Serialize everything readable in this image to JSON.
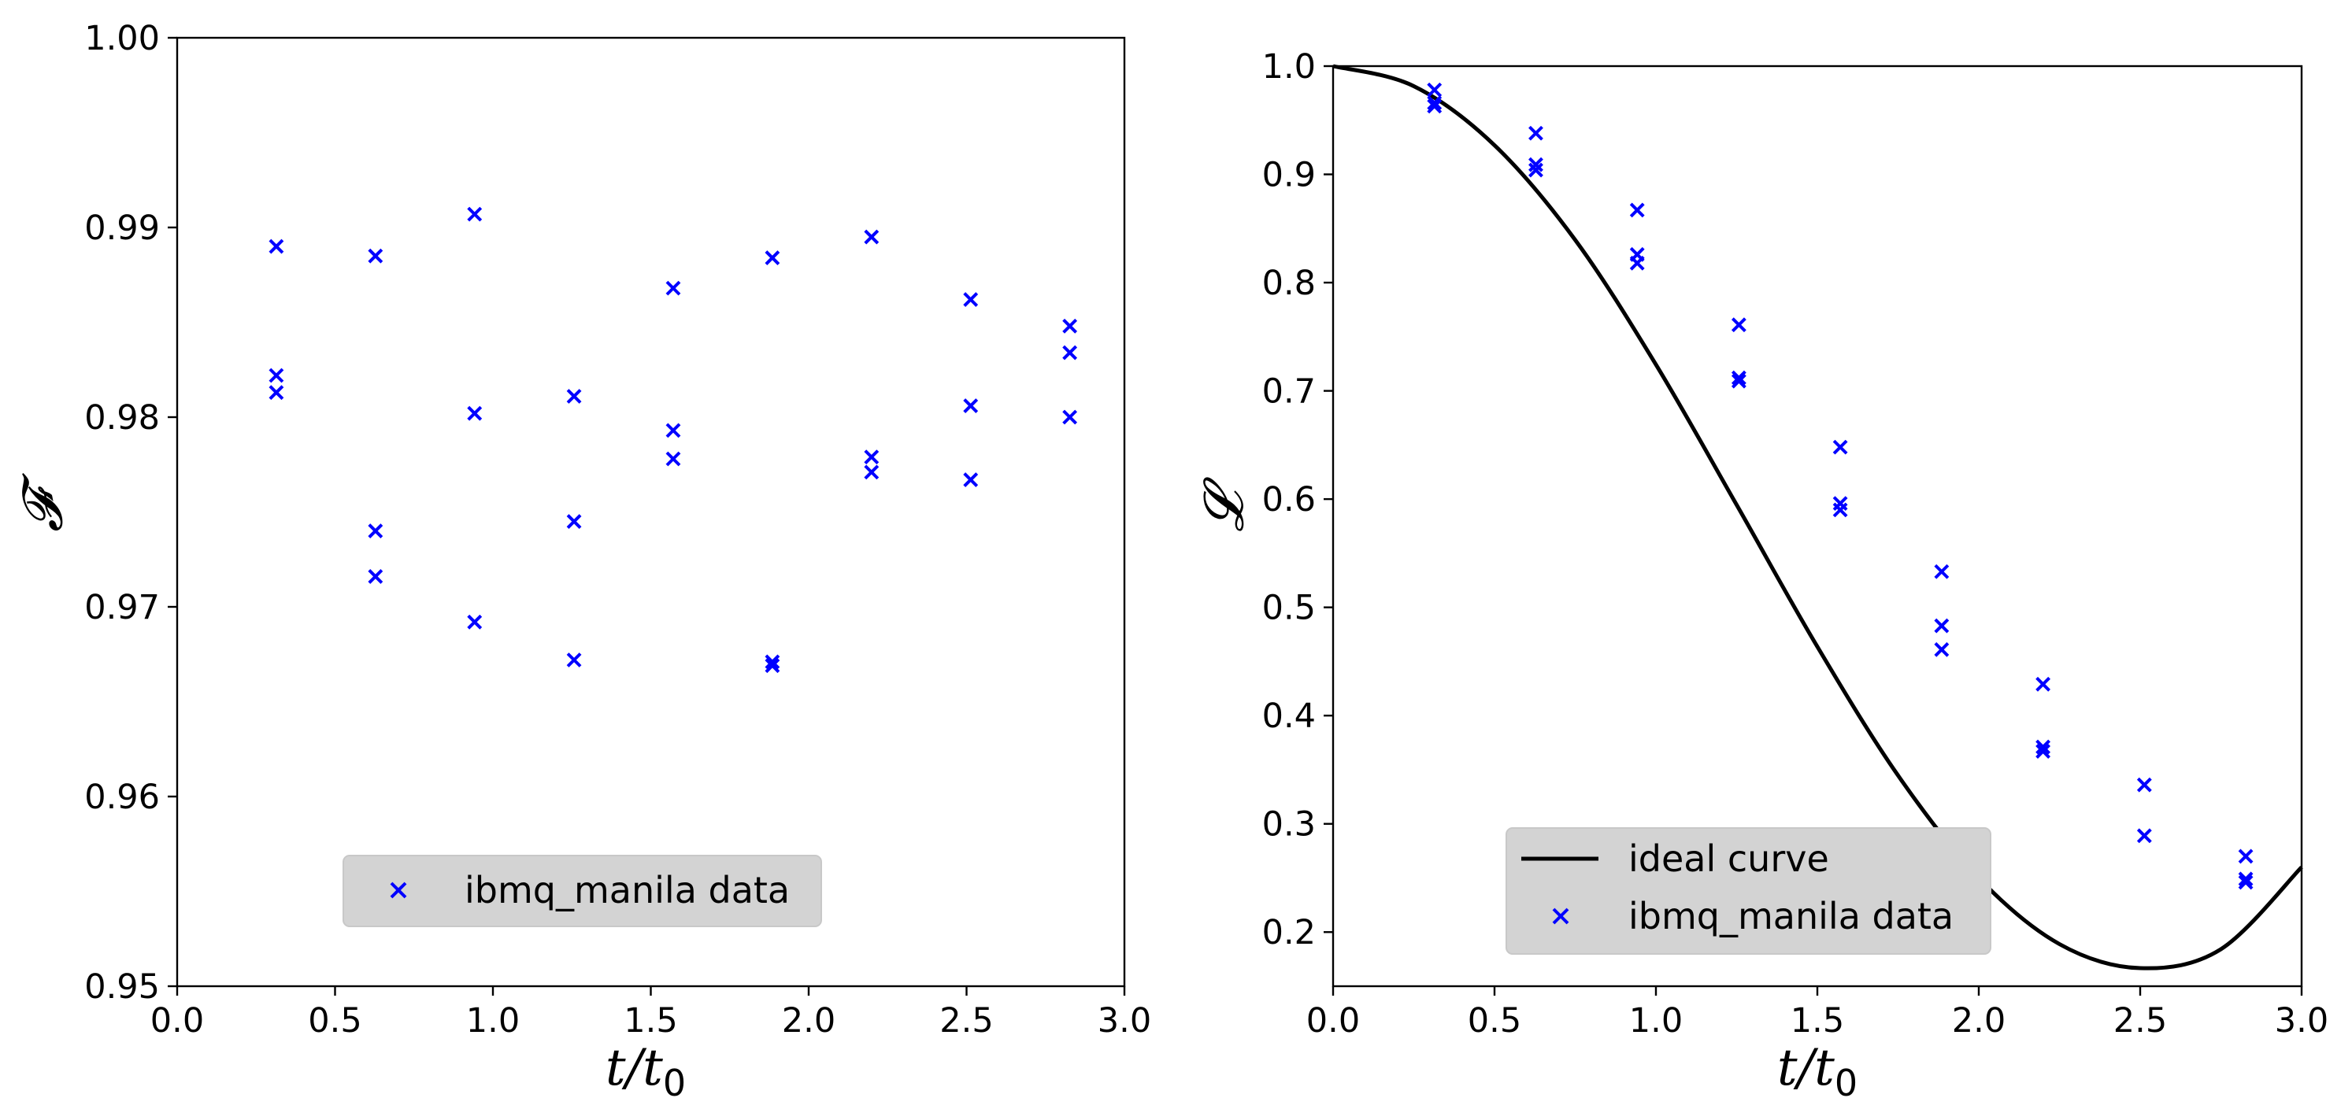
{
  "colors": {
    "marker": "#0000ff",
    "curve": "#000000",
    "legend_bg": "#d3d3d3"
  },
  "chart_data": [
    {
      "type": "scatter",
      "xlabel_main": "t/t",
      "xlabel_sub": "0",
      "ylabel": "𝓕",
      "xlim": [
        0.0,
        3.0
      ],
      "ylim": [
        0.95,
        1.0
      ],
      "xticks": [
        "0.0",
        "0.5",
        "1.0",
        "1.5",
        "2.0",
        "2.5",
        "3.0"
      ],
      "yticks": [
        "0.95",
        "0.96",
        "0.97",
        "0.98",
        "0.99",
        "1.00"
      ],
      "legend_location": "lower center",
      "legend": [
        "ibmq_manila data"
      ],
      "series": [
        {
          "name": "ibmq_manila data",
          "marker": "x",
          "points": [
            [
              0.314,
              0.989
            ],
            [
              0.314,
              0.9822
            ],
            [
              0.314,
              0.9813
            ],
            [
              0.628,
              0.9885
            ],
            [
              0.628,
              0.974
            ],
            [
              0.628,
              0.9716
            ],
            [
              0.942,
              0.9907
            ],
            [
              0.942,
              0.9802
            ],
            [
              0.942,
              0.9692
            ],
            [
              1.257,
              0.9811
            ],
            [
              1.257,
              0.9745
            ],
            [
              1.257,
              0.9672
            ],
            [
              1.571,
              0.9868
            ],
            [
              1.571,
              0.9793
            ],
            [
              1.571,
              0.9778
            ],
            [
              1.885,
              0.9884
            ],
            [
              1.885,
              0.9671
            ],
            [
              1.885,
              0.9669
            ],
            [
              2.199,
              0.9895
            ],
            [
              2.199,
              0.9779
            ],
            [
              2.199,
              0.9771
            ],
            [
              2.513,
              0.9862
            ],
            [
              2.513,
              0.9806
            ],
            [
              2.513,
              0.9767
            ],
            [
              2.827,
              0.9848
            ],
            [
              2.827,
              0.9834
            ],
            [
              2.827,
              0.98
            ]
          ]
        }
      ]
    },
    {
      "type": "scatter",
      "xlabel_main": "t/t",
      "xlabel_sub": "0",
      "ylabel": "𝓛",
      "xlim": [
        0.0,
        3.0
      ],
      "ylim": [
        0.15,
        1.0
      ],
      "xticks": [
        "0.0",
        "0.5",
        "1.0",
        "1.5",
        "2.0",
        "2.5",
        "3.0"
      ],
      "yticks": [
        "0.2",
        "0.3",
        "0.4",
        "0.5",
        "0.6",
        "0.7",
        "0.8",
        "0.9",
        "1.0"
      ],
      "legend_location": "lower left",
      "legend": [
        "ideal curve",
        "ibmq_manila data"
      ],
      "series": [
        {
          "name": "ideal curve",
          "type": "line",
          "points": [
            [
              0.0,
              1.0
            ],
            [
              0.25,
              0.9815
            ],
            [
              0.5,
              0.9269
            ],
            [
              0.75,
              0.8394
            ],
            [
              1.0,
              0.7243
            ],
            [
              1.25,
              0.5947
            ],
            [
              1.5,
              0.4637
            ],
            [
              1.75,
              0.3447
            ],
            [
              2.0,
              0.25
            ],
            [
              2.25,
              0.1889
            ],
            [
              2.5,
              0.1667
            ],
            [
              2.75,
              0.1842
            ],
            [
              3.0,
              0.26
            ]
          ]
        },
        {
          "name": "ibmq_manila data",
          "marker": "x",
          "points": [
            [
              0.314,
              0.978
            ],
            [
              0.314,
              0.966
            ],
            [
              0.314,
              0.963
            ],
            [
              0.628,
              0.938
            ],
            [
              0.628,
              0.909
            ],
            [
              0.628,
              0.904
            ],
            [
              0.942,
              0.867
            ],
            [
              0.942,
              0.826
            ],
            [
              0.942,
              0.818
            ],
            [
              1.257,
              0.761
            ],
            [
              1.257,
              0.712
            ],
            [
              1.257,
              0.709
            ],
            [
              1.571,
              0.648
            ],
            [
              1.571,
              0.596
            ],
            [
              1.571,
              0.59
            ],
            [
              1.885,
              0.533
            ],
            [
              1.885,
              0.483
            ],
            [
              1.885,
              0.461
            ],
            [
              2.199,
              0.429
            ],
            [
              2.199,
              0.371
            ],
            [
              2.199,
              0.367
            ],
            [
              2.513,
              0.336
            ],
            [
              2.513,
              0.289
            ],
            [
              2.827,
              0.27
            ],
            [
              2.827,
              0.249
            ],
            [
              2.827,
              0.246
            ]
          ]
        }
      ]
    }
  ]
}
